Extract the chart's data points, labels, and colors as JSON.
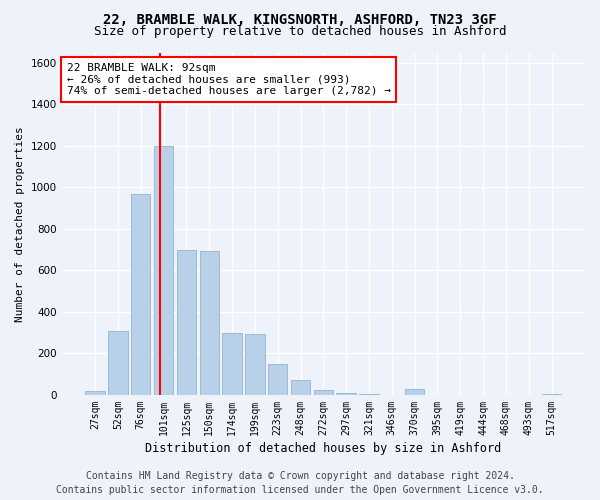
{
  "title_line1": "22, BRAMBLE WALK, KINGSNORTH, ASHFORD, TN23 3GF",
  "title_line2": "Size of property relative to detached houses in Ashford",
  "xlabel": "Distribution of detached houses by size in Ashford",
  "ylabel": "Number of detached properties",
  "bar_color": "#b8d0e8",
  "bar_edge_color": "#88aac8",
  "background_color": "#eef2fa",
  "grid_color": "#ffffff",
  "categories": [
    "27sqm",
    "52sqm",
    "76sqm",
    "101sqm",
    "125sqm",
    "150sqm",
    "174sqm",
    "199sqm",
    "223sqm",
    "248sqm",
    "272sqm",
    "297sqm",
    "321sqm",
    "346sqm",
    "370sqm",
    "395sqm",
    "419sqm",
    "444sqm",
    "468sqm",
    "493sqm",
    "517sqm"
  ],
  "values": [
    20,
    310,
    970,
    1200,
    700,
    695,
    300,
    295,
    150,
    70,
    25,
    10,
    5,
    2,
    30,
    2,
    1,
    1,
    1,
    1,
    5
  ],
  "ylim": [
    0,
    1650
  ],
  "yticks": [
    0,
    200,
    400,
    600,
    800,
    1000,
    1200,
    1400,
    1600
  ],
  "property_label": "22 BRAMBLE WALK: 92sqm",
  "annotation_line1": "← 26% of detached houses are smaller (993)",
  "annotation_line2": "74% of semi-detached houses are larger (2,782) →",
  "red_line_bar_index": 2.85,
  "footer_line1": "Contains HM Land Registry data © Crown copyright and database right 2024.",
  "footer_line2": "Contains public sector information licensed under the Open Government Licence v3.0.",
  "title_fontsize": 10,
  "subtitle_fontsize": 9,
  "annotation_fontsize": 8,
  "footer_fontsize": 7,
  "ylabel_fontsize": 8,
  "xlabel_fontsize": 8.5
}
